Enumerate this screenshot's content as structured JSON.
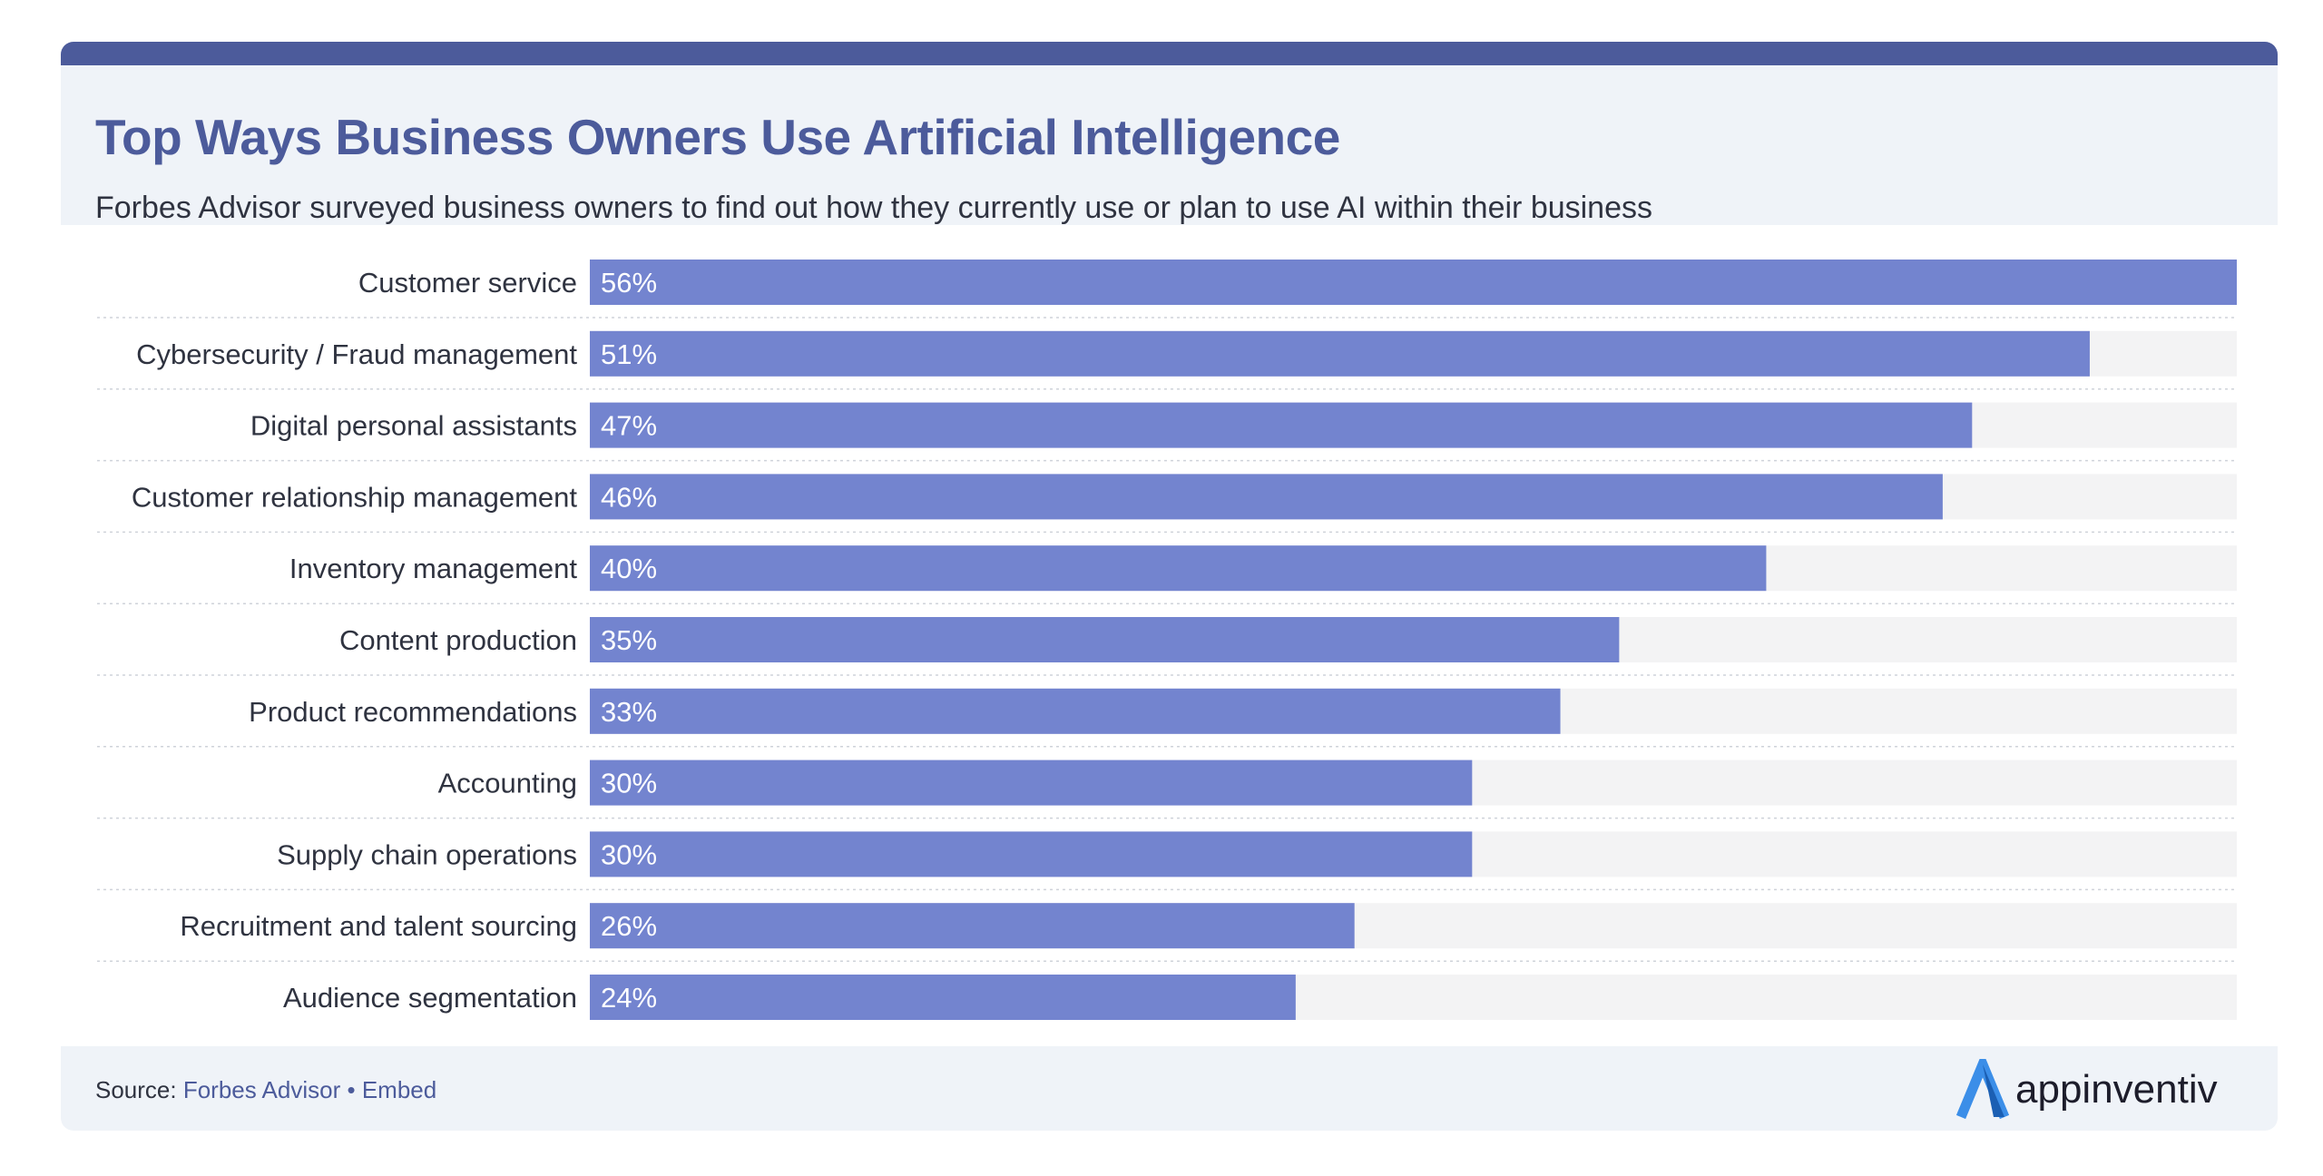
{
  "header": {
    "title": "Top Ways Business Owners Use Artificial Intelligence",
    "subtitle": "Forbes Advisor surveyed business owners to find out how they currently use or plan to use AI within their business"
  },
  "footer": {
    "source_label": "Source:",
    "source_link": "Forbes Advisor",
    "separator": "•",
    "embed_link": "Embed",
    "logo_text": "appinventiv",
    "logo_icon": "appinventiv-logo-icon"
  },
  "colors": {
    "bar": "#7384cf",
    "track": "#f3f3f4",
    "accent": "#4c5b9b",
    "logo_icon": "#3b8ee8"
  },
  "chart_data": {
    "type": "bar",
    "orientation": "horizontal",
    "categories": [
      "Customer service",
      "Cybersecurity / Fraud management",
      "Digital personal assistants",
      "Customer relationship management",
      "Inventory management",
      "Content production",
      "Product recommendations",
      "Accounting",
      "Supply chain operations",
      "Recruitment and talent sourcing",
      "Audience segmentation"
    ],
    "values": [
      56,
      51,
      47,
      46,
      40,
      35,
      33,
      30,
      30,
      26,
      24
    ],
    "value_labels": [
      "56%",
      "51%",
      "47%",
      "46%",
      "40%",
      "35%",
      "33%",
      "30%",
      "30%",
      "26%",
      "24%"
    ],
    "unit": "%",
    "xlim": [
      0,
      56
    ],
    "grid": false,
    "legend": "none"
  }
}
